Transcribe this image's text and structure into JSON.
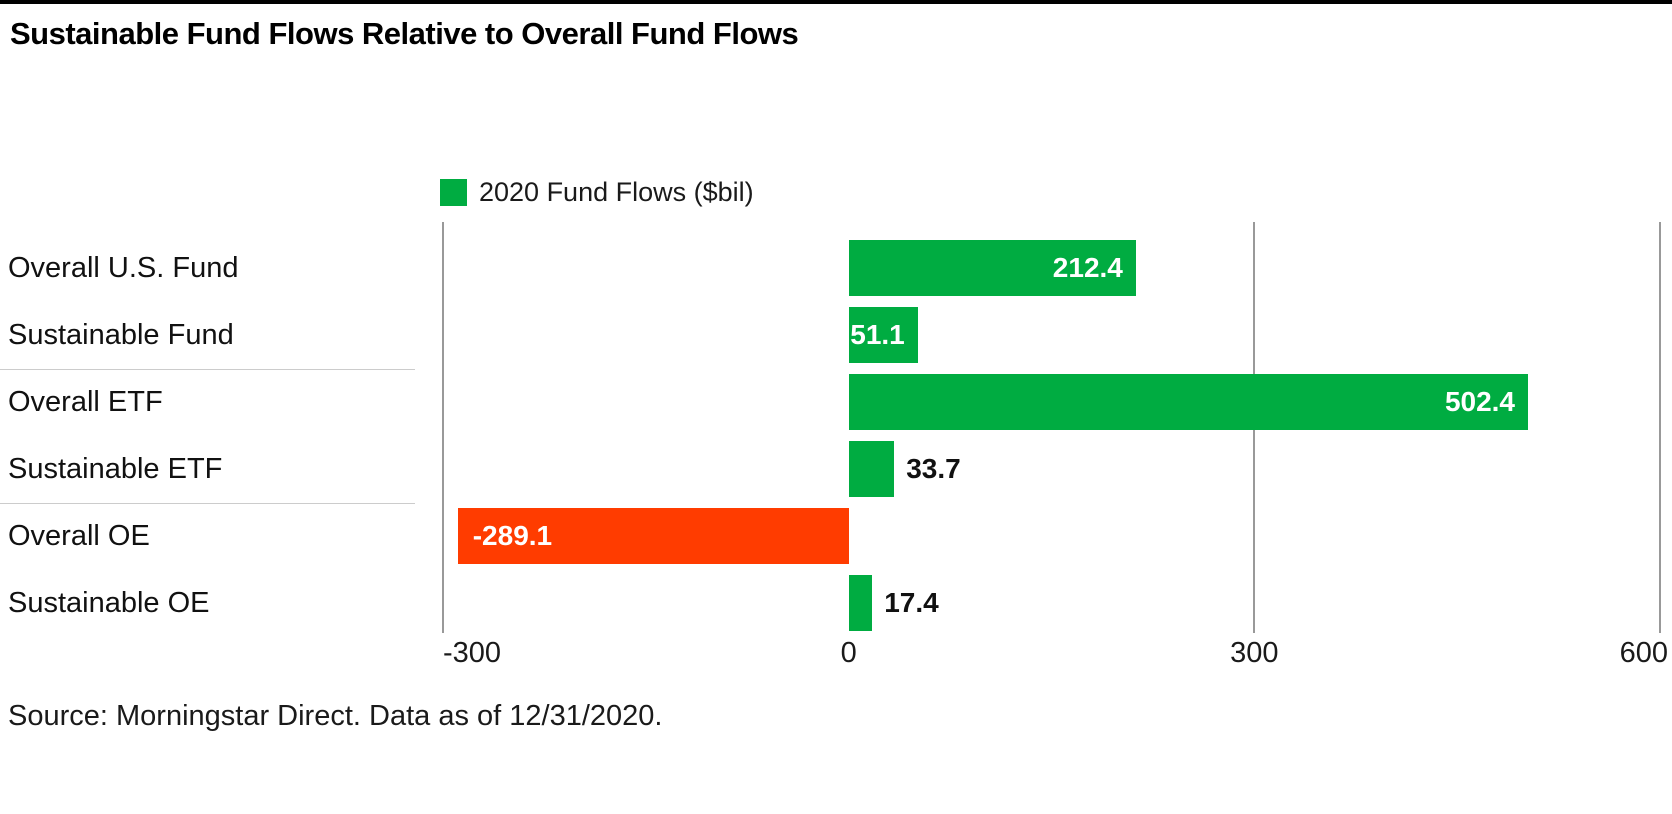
{
  "title": "Sustainable Fund Flows Relative to Overall Fund Flows",
  "legend": {
    "label": "2020 Fund Flows ($bil)",
    "swatch_color": "#00AC41"
  },
  "source": "Source: Morningstar Direct. Data as of 12/31/2020.",
  "chart_data": {
    "type": "bar",
    "orientation": "horizontal",
    "title": "Sustainable Fund Flows Relative to Overall Fund Flows",
    "series_name": "2020 Fund Flows ($bil)",
    "categories": [
      "Overall U.S. Fund",
      "Sustainable Fund",
      "Overall ETF",
      "Sustainable ETF",
      "Overall OE",
      "Sustainable OE"
    ],
    "values": [
      212.4,
      51.1,
      502.4,
      33.7,
      -289.1,
      17.4
    ],
    "value_labels": [
      "212.4",
      "51.1",
      "502.4",
      "33.7",
      "-289.1",
      "17.4"
    ],
    "x_ticks": [
      "-300",
      "0",
      "300",
      "600"
    ],
    "x_tick_values": [
      -300,
      0,
      300,
      600
    ],
    "xlim": [
      -300,
      600
    ],
    "grid": "vertical-gridlines-at--300-300-600",
    "legend_position": "top-left-of-plot",
    "group_dividers_after_rows": [
      2,
      4
    ],
    "colors": {
      "positive_bar": "#00AC41",
      "negative_bar": "#FF3C00",
      "gridline": "#999999",
      "divider": "#cccccc",
      "text": "#111111",
      "value_label_inside": "#ffffff",
      "value_label_outside": "#111111",
      "top_border": "#000000"
    }
  }
}
